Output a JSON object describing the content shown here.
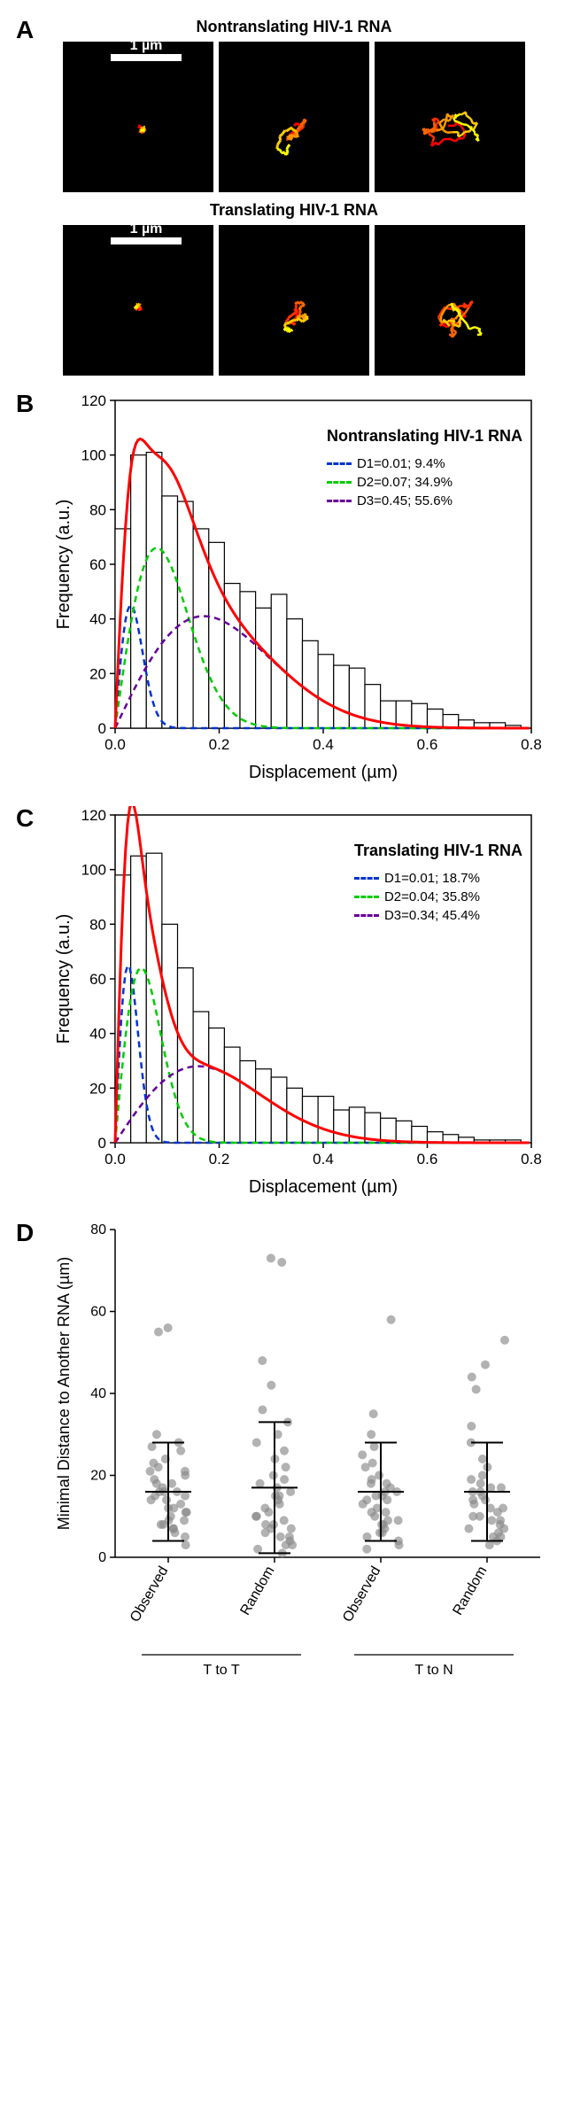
{
  "panelA": {
    "label": "A",
    "title_top": "Nontranslating HIV-1 RNA",
    "title_bottom": "Translating HIV-1 RNA",
    "scalebar_text": "1 µm",
    "background_color": "#000000",
    "trajectory_colors": [
      "#ff0000",
      "#ff3300",
      "#ff6600",
      "#ff9900",
      "#ffcc00",
      "#ffff00"
    ],
    "scalebar_color": "#ffffff"
  },
  "panelB": {
    "label": "B",
    "chart_type": "histogram_with_fits",
    "title": "Nontranslating HIV-1 RNA",
    "xlabel": "Displacement (µm)",
    "ylabel": "Frequency (a.u.)",
    "xlim": [
      0,
      0.8
    ],
    "ylim": [
      0,
      120
    ],
    "xtick_step": 0.2,
    "ytick_step": 20,
    "bin_width": 0.03,
    "histogram_values": [
      73,
      100,
      101,
      85,
      83,
      73,
      68,
      53,
      50,
      44,
      49,
      40,
      32,
      27,
      23,
      22,
      16,
      10,
      10,
      9,
      7,
      5,
      3,
      2,
      2,
      1
    ],
    "histogram_fill": "#ffffff",
    "histogram_border": "#000000",
    "sum_curve_color": "#ff0000",
    "fit_curves": {
      "D1": {
        "label": "D1=0.01; 9.4%",
        "color": "#0033cc",
        "peak_x": 0.035,
        "peak_y": 45,
        "sigma": 0.03
      },
      "D2": {
        "label": "D2=0.07; 34.9%",
        "color": "#00cc00",
        "peak_x": 0.085,
        "peak_y": 66,
        "sigma": 0.08
      },
      "D3": {
        "label": "D3=0.45; 55.6%",
        "color": "#660099",
        "peak_x": 0.19,
        "peak_y": 41,
        "sigma": 0.17
      }
    },
    "font_size_axis": 20,
    "font_size_ticks": 17,
    "grid": false
  },
  "panelC": {
    "label": "C",
    "chart_type": "histogram_with_fits",
    "title": "Translating HIV-1 RNA",
    "xlabel": "Displacement (µm)",
    "ylabel": "Frequency (a.u.)",
    "xlim": [
      0,
      0.8
    ],
    "ylim": [
      0,
      120
    ],
    "xtick_step": 0.2,
    "ytick_step": 20,
    "bin_width": 0.03,
    "histogram_values": [
      98,
      105,
      106,
      80,
      64,
      48,
      42,
      35,
      30,
      27,
      24,
      20,
      17,
      17,
      12,
      13,
      11,
      9,
      8,
      6,
      4,
      3,
      2,
      1,
      1,
      1
    ],
    "histogram_fill": "#ffffff",
    "histogram_border": "#000000",
    "sum_curve_color": "#ff0000",
    "fit_curves": {
      "D1": {
        "label": "D1=0.01; 18.7%",
        "color": "#0033cc",
        "peak_x": 0.028,
        "peak_y": 65,
        "sigma": 0.025
      },
      "D2": {
        "label": "D2=0.04; 35.8%",
        "color": "#00cc00",
        "peak_x": 0.05,
        "peak_y": 64,
        "sigma": 0.05
      },
      "D3": {
        "label": "D3=0.34; 45.4%",
        "color": "#660099",
        "peak_x": 0.15,
        "peak_y": 28,
        "sigma": 0.16
      }
    },
    "font_size_axis": 20,
    "font_size_ticks": 17,
    "grid": false
  },
  "panelD": {
    "label": "D",
    "chart_type": "jitter_scatter",
    "ylabel": "Minimal Distance to Another RNA (µm)",
    "ylim": [
      0,
      80
    ],
    "ytick_step": 20,
    "categories": [
      "Observed",
      "Random",
      "Observed",
      "Random"
    ],
    "group_labels": [
      "T to T",
      "T to N"
    ],
    "marker_color": "#888888",
    "marker_opacity": 0.65,
    "marker_radius": 5,
    "errorbar_color": "#000000",
    "data": {
      "T_to_T_Observed": {
        "mean": 16,
        "sd": 12,
        "points": [
          3,
          5,
          6,
          7,
          7,
          8,
          8,
          9,
          9,
          10,
          11,
          11,
          12,
          12,
          13,
          14,
          14,
          15,
          15,
          16,
          16,
          16,
          17,
          18,
          18,
          19,
          20,
          21,
          21,
          22,
          23,
          24,
          26,
          27,
          28,
          30,
          55,
          56
        ]
      },
      "T_to_T_Random": {
        "mean": 17,
        "sd": 16,
        "points": [
          1,
          2,
          3,
          3,
          4,
          5,
          5,
          6,
          7,
          7,
          8,
          8,
          9,
          10,
          10,
          11,
          12,
          13,
          14,
          15,
          15,
          16,
          17,
          18,
          19,
          20,
          22,
          24,
          26,
          28,
          30,
          33,
          36,
          42,
          48,
          72,
          73
        ]
      },
      "T_to_N_Observed": {
        "mean": 16,
        "sd": 12,
        "points": [
          2,
          3,
          4,
          5,
          6,
          6,
          7,
          8,
          8,
          9,
          9,
          10,
          11,
          11,
          12,
          13,
          14,
          14,
          15,
          15,
          16,
          16,
          17,
          18,
          18,
          19,
          20,
          22,
          23,
          25,
          27,
          30,
          35,
          58
        ]
      },
      "T_to_N_Random": {
        "mean": 16,
        "sd": 12,
        "points": [
          3,
          4,
          5,
          5,
          6,
          7,
          7,
          8,
          9,
          9,
          10,
          10,
          11,
          12,
          12,
          13,
          14,
          14,
          15,
          16,
          16,
          17,
          17,
          18,
          19,
          20,
          22,
          24,
          28,
          32,
          41,
          44,
          47,
          53
        ]
      }
    },
    "font_size_axis": 18,
    "font_size_ticks": 16
  }
}
